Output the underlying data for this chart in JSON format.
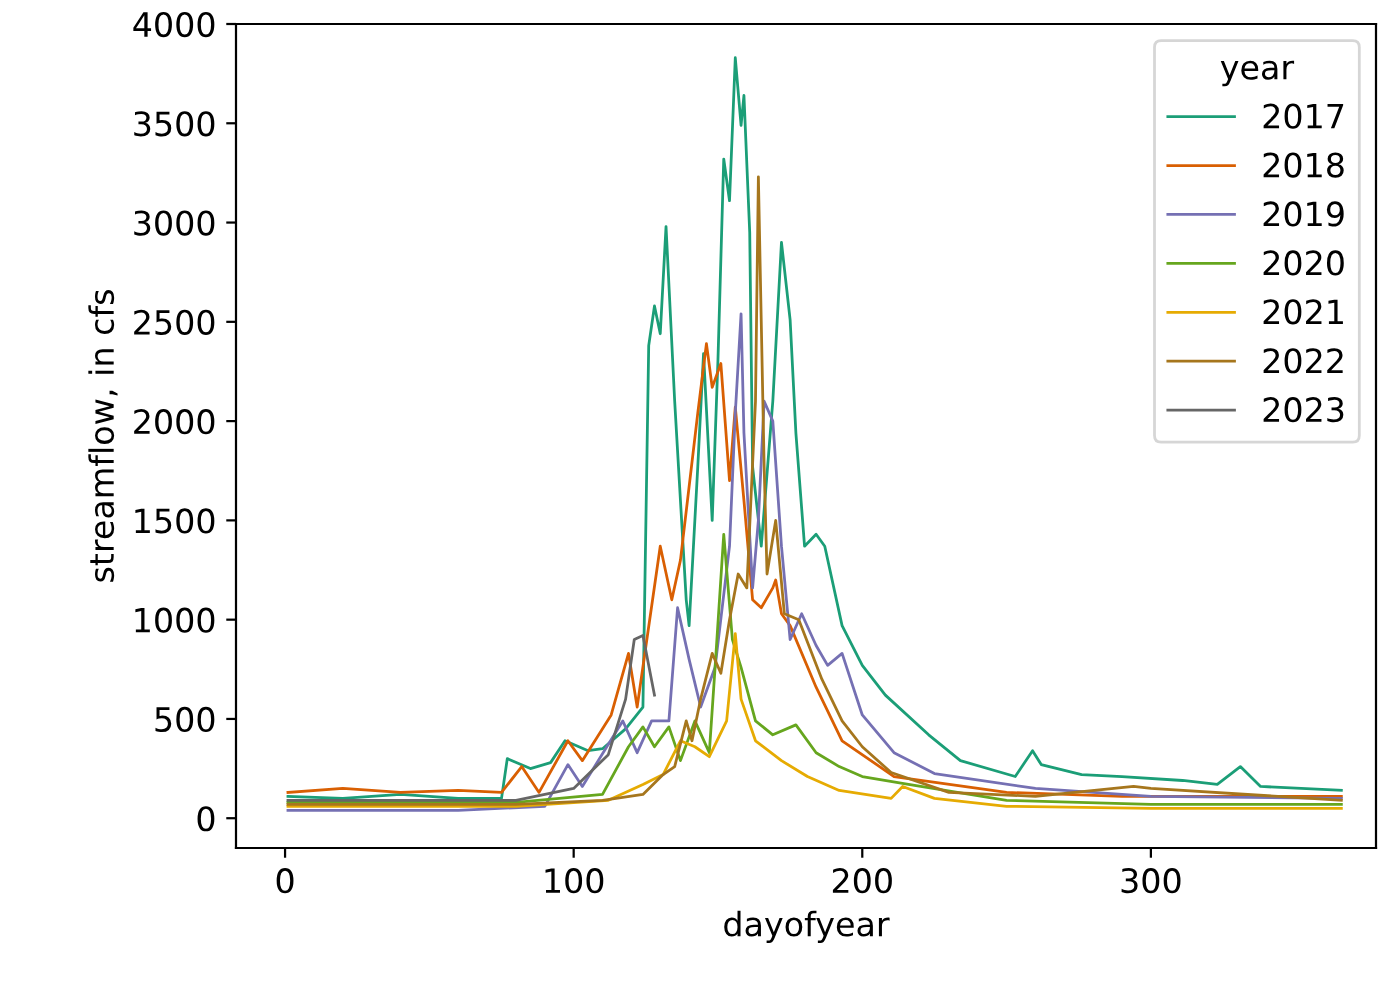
{
  "chart_data": {
    "type": "line",
    "xlabel": "dayofyear",
    "ylabel": "streamflow, in cfs",
    "legend_title": "year",
    "legend": "top right",
    "line_style": "solid",
    "xlim": [
      -17,
      378
    ],
    "ylim": [
      -150,
      4000
    ],
    "xticks": [
      0,
      100,
      200,
      300
    ],
    "yticks": [
      0,
      500,
      1000,
      1500,
      2000,
      2500,
      3000,
      3500,
      4000
    ],
    "series": [
      {
        "name": "2017",
        "color": "#1b9e77",
        "x": [
          1,
          20,
          40,
          60,
          75,
          77,
          85,
          92,
          97,
          105,
          110,
          118,
          124,
          126,
          128,
          130,
          132,
          135,
          139,
          140,
          143,
          145,
          148,
          150,
          152,
          154,
          156,
          158,
          159,
          161,
          162,
          165,
          169,
          172,
          175,
          177,
          180,
          184,
          187,
          193,
          200,
          208,
          223,
          234,
          253,
          259,
          262,
          276,
          290,
          311,
          323,
          331,
          338,
          366
        ],
        "values": [
          110,
          100,
          120,
          100,
          100,
          300,
          250,
          280,
          390,
          340,
          350,
          450,
          560,
          2380,
          2580,
          2440,
          2980,
          2100,
          1100,
          970,
          1770,
          2340,
          1500,
          2310,
          3320,
          3110,
          3830,
          3490,
          3640,
          2950,
          1770,
          1370,
          2100,
          2900,
          2510,
          1940,
          1370,
          1430,
          1370,
          970,
          770,
          620,
          420,
          290,
          210,
          340,
          270,
          220,
          210,
          190,
          170,
          260,
          160,
          140
        ]
      },
      {
        "name": "2018",
        "color": "#d95f02",
        "x": [
          1,
          20,
          40,
          60,
          75,
          82,
          88,
          98,
          103,
          113,
          119,
          122,
          130,
          134,
          137,
          143,
          146,
          148,
          151,
          154,
          156,
          159,
          162,
          165,
          169,
          170,
          172,
          175,
          184,
          193,
          211,
          250,
          290,
          330,
          366
        ],
        "values": [
          130,
          150,
          130,
          140,
          130,
          260,
          130,
          390,
          290,
          520,
          830,
          560,
          1370,
          1100,
          1300,
          2040,
          2390,
          2170,
          2290,
          1700,
          2070,
          1600,
          1100,
          1060,
          1160,
          1200,
          1030,
          970,
          660,
          390,
          210,
          130,
          110,
          110,
          110
        ]
      },
      {
        "name": "2019",
        "color": "#7570b3",
        "x": [
          1,
          30,
          60,
          90,
          98,
          103,
          117,
          122,
          127,
          133,
          136,
          140,
          144,
          149,
          154,
          156,
          158,
          159,
          162,
          164,
          166,
          169,
          172,
          175,
          179,
          184,
          188,
          193,
          200,
          211,
          225,
          260,
          300,
          366
        ],
        "values": [
          40,
          40,
          40,
          60,
          270,
          160,
          490,
          330,
          490,
          490,
          1060,
          800,
          560,
          760,
          1370,
          2040,
          2540,
          1940,
          1160,
          1500,
          2100,
          2000,
          1370,
          900,
          1030,
          870,
          770,
          830,
          520,
          330,
          225,
          150,
          110,
          100
        ]
      },
      {
        "name": "2020",
        "color": "#66a61e",
        "x": [
          1,
          40,
          80,
          110,
          119,
          124,
          128,
          133,
          137,
          142,
          147,
          149,
          152,
          155,
          158,
          163,
          169,
          177,
          184,
          192,
          200,
          216,
          250,
          300,
          366
        ],
        "values": [
          80,
          80,
          80,
          120,
          360,
          460,
          360,
          460,
          290,
          490,
          330,
          760,
          1430,
          900,
          760,
          490,
          420,
          470,
          330,
          260,
          210,
          170,
          90,
          70,
          70
        ]
      },
      {
        "name": "2021",
        "color": "#e6ab02",
        "x": [
          1,
          40,
          80,
          112,
          124,
          131,
          137,
          142,
          147,
          153,
          156,
          158,
          163,
          172,
          181,
          192,
          210,
          214,
          225,
          250,
          300,
          366
        ],
        "values": [
          60,
          60,
          60,
          90,
          170,
          220,
          390,
          360,
          310,
          490,
          930,
          600,
          390,
          290,
          210,
          140,
          100,
          160,
          100,
          60,
          50,
          50
        ]
      },
      {
        "name": "2022",
        "color": "#a6761d",
        "x": [
          1,
          40,
          80,
          110,
          124,
          131,
          135,
          139,
          141,
          144,
          148,
          151,
          154,
          157,
          160,
          163,
          164,
          166,
          167,
          170,
          173,
          178,
          186,
          193,
          200,
          210,
          230,
          260,
          294,
          300,
          366
        ],
        "values": [
          70,
          70,
          70,
          90,
          120,
          220,
          260,
          490,
          390,
          600,
          830,
          730,
          1000,
          1230,
          1160,
          2100,
          3230,
          1770,
          1230,
          1500,
          1030,
          1000,
          700,
          490,
          360,
          230,
          130,
          110,
          160,
          150,
          90
        ]
      },
      {
        "name": "2023",
        "color": "#666666",
        "x": [
          1,
          40,
          80,
          100,
          112,
          118,
          121,
          124,
          128
        ],
        "values": [
          90,
          90,
          90,
          150,
          320,
          600,
          900,
          920,
          620
        ]
      }
    ]
  }
}
